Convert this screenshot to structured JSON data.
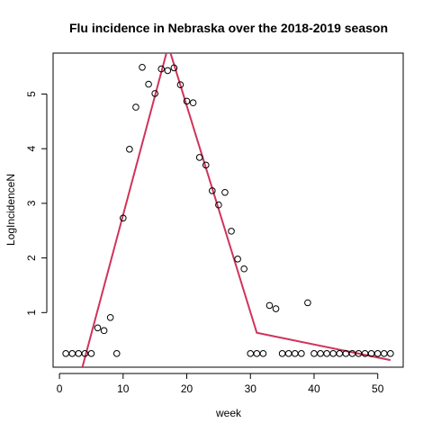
{
  "chart_data": {
    "type": "scatter",
    "title": "Flu incidence in Nebraska over the 2018-2019 season",
    "xlabel": "week",
    "ylabel": "LogIncidenceN",
    "xlim": [
      -1,
      54
    ],
    "ylim": [
      0.0,
      5.75
    ],
    "x_ticks": [
      0,
      10,
      20,
      30,
      40,
      50
    ],
    "y_ticks": [
      1,
      2,
      3,
      4,
      5
    ],
    "grid": false,
    "points": {
      "x": [
        1,
        2,
        3,
        4,
        5,
        6,
        7,
        8,
        9,
        10,
        11,
        12,
        13,
        14,
        15,
        16,
        17,
        18,
        19,
        20,
        21,
        22,
        23,
        24,
        25,
        26,
        27,
        28,
        29,
        30,
        31,
        32,
        33,
        34,
        35,
        36,
        37,
        38,
        39,
        40,
        41,
        42,
        43,
        44,
        45,
        46,
        47,
        48,
        49,
        50,
        51,
        52
      ],
      "y": [
        0.25,
        0.25,
        0.25,
        0.25,
        0.25,
        0.72,
        0.67,
        0.91,
        0.25,
        2.73,
        3.99,
        4.76,
        5.49,
        5.18,
        5.01,
        5.46,
        5.43,
        5.48,
        5.17,
        4.87,
        4.84,
        3.84,
        3.7,
        3.23,
        2.97,
        3.2,
        2.49,
        1.98,
        1.8,
        0.25,
        0.25,
        0.25,
        1.13,
        1.07,
        0.25,
        0.25,
        0.25,
        0.25,
        1.18,
        0.25,
        0.25,
        0.25,
        0.25,
        0.25,
        0.25,
        0.25,
        0.25,
        0.25,
        0.25,
        0.25,
        0.25,
        0.25
      ]
    },
    "fit_line": {
      "color": "#d0335a",
      "x": [
        3.6,
        17.1,
        31.0,
        52.0
      ],
      "y": [
        0.0,
        5.88,
        0.63,
        0.13
      ]
    }
  }
}
